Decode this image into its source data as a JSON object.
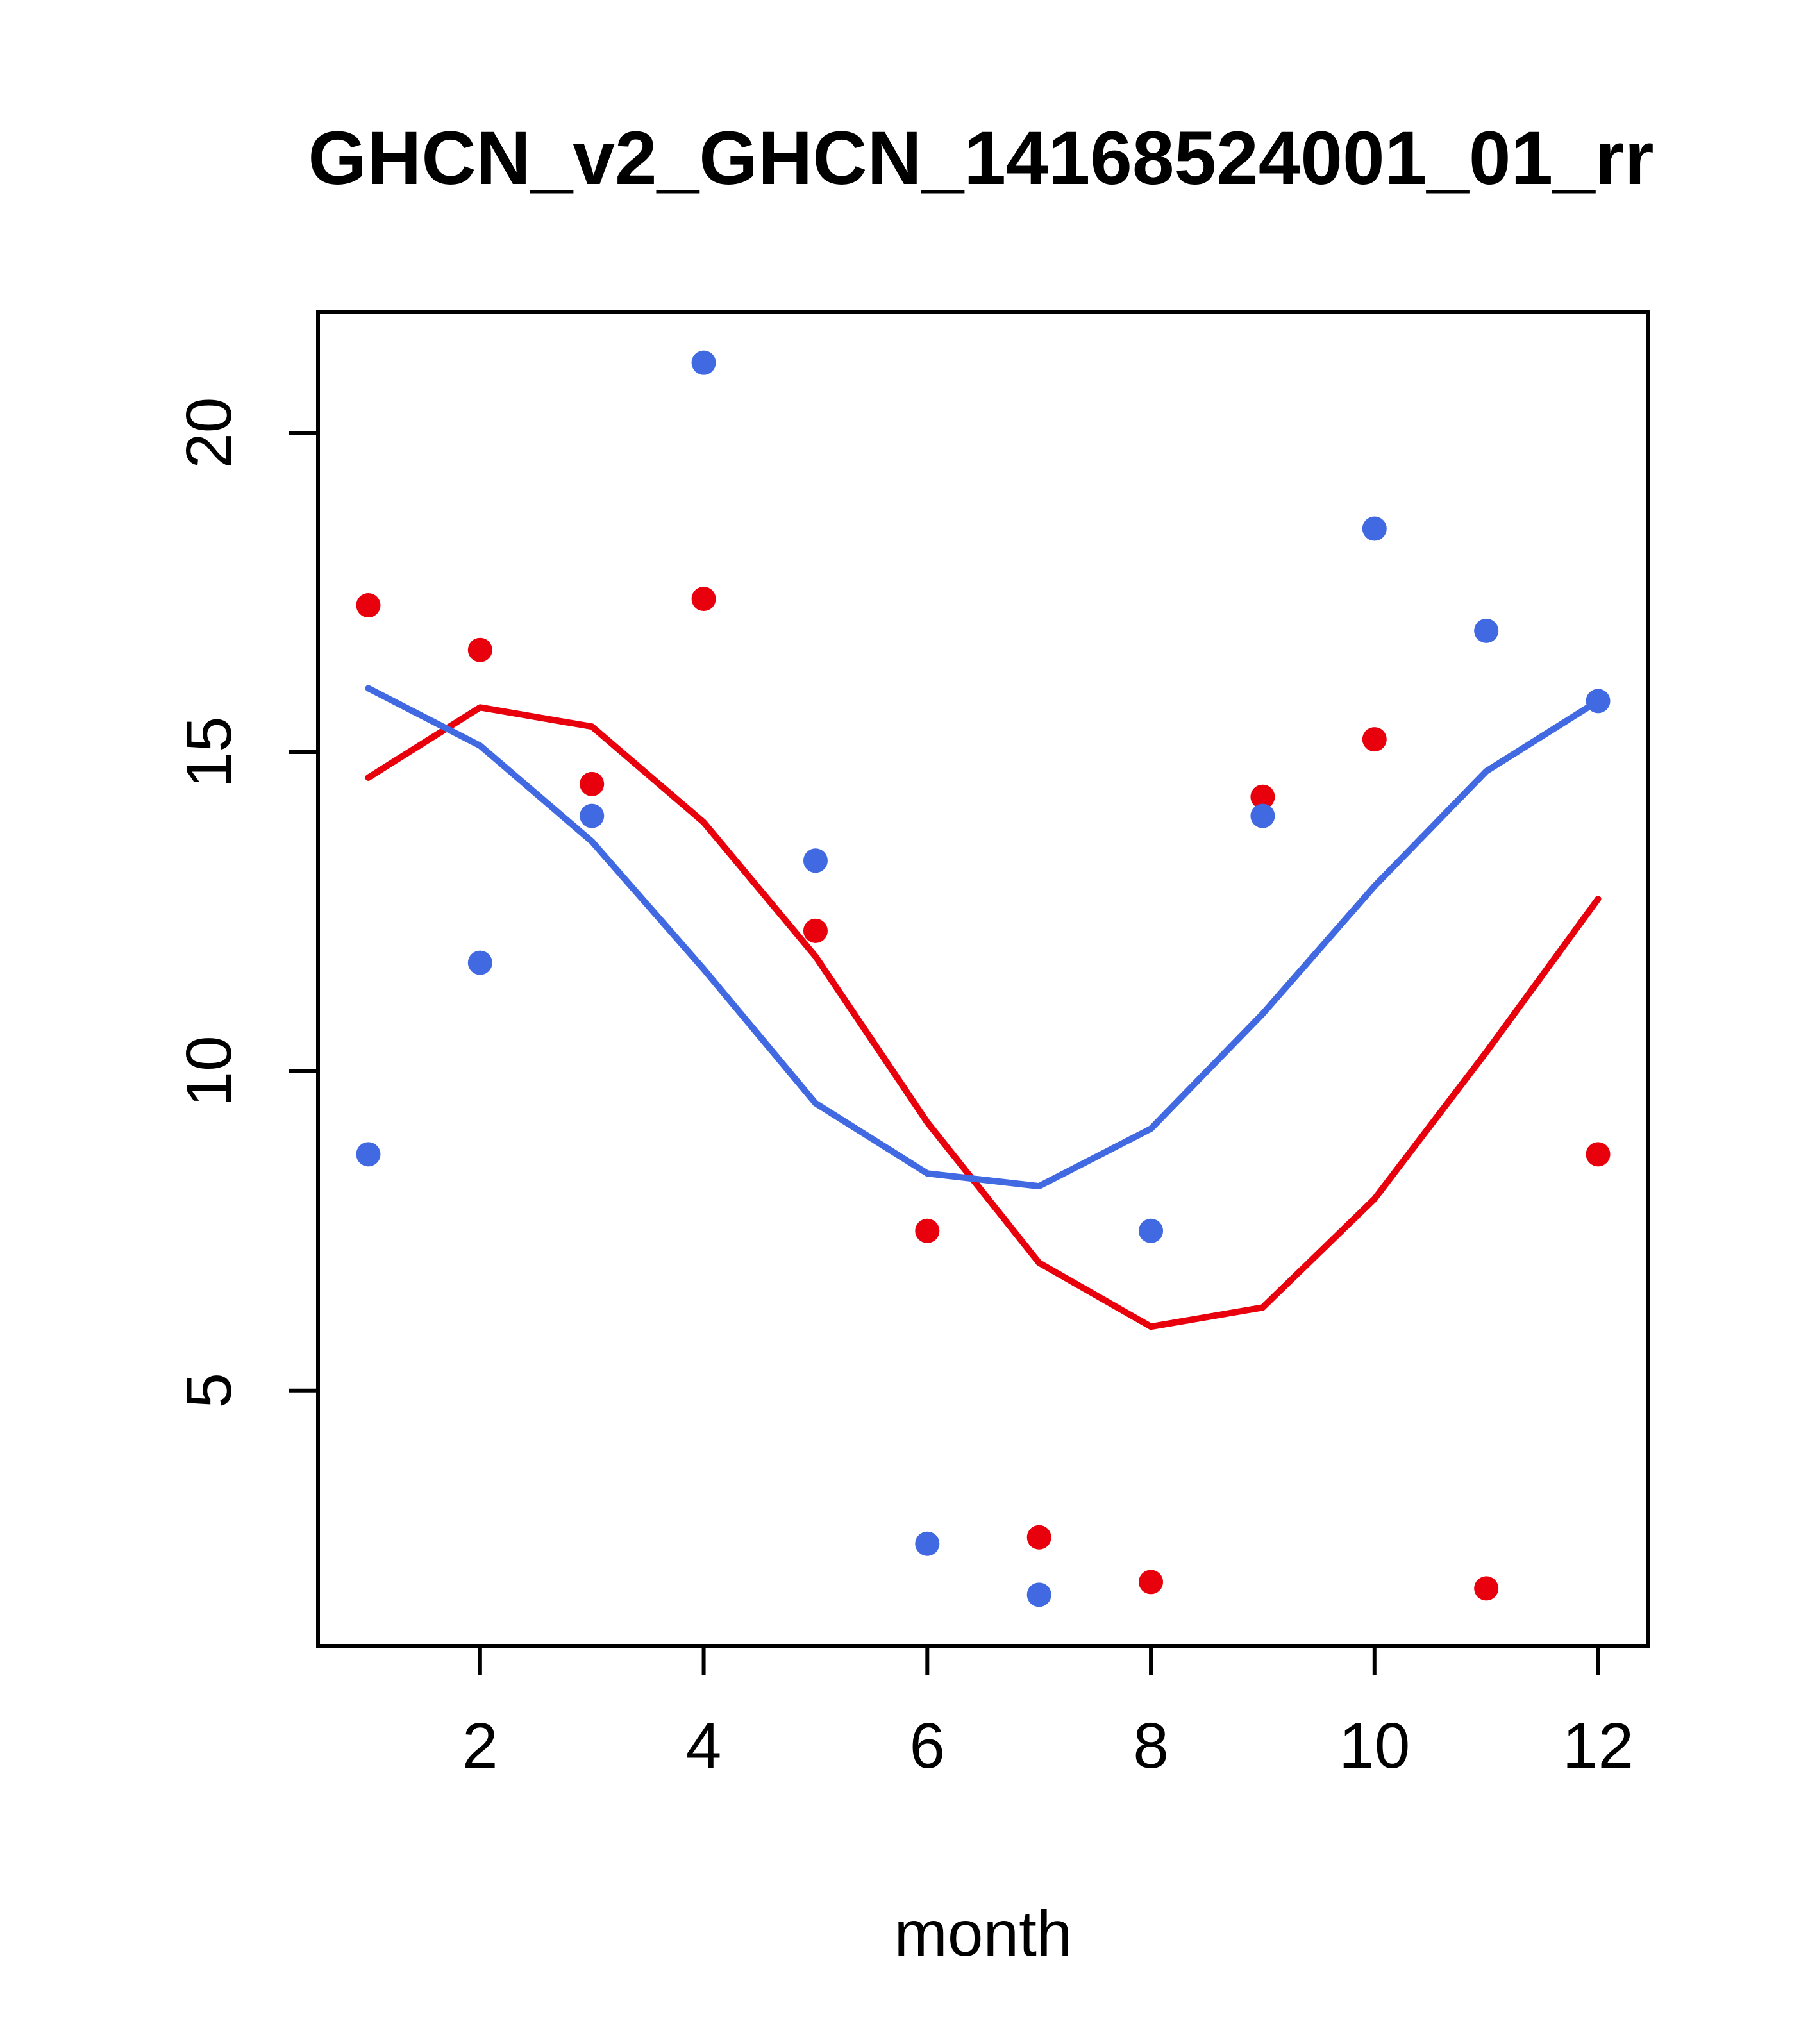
{
  "chart_data": {
    "type": "scatter",
    "title": "GHCN_v2_GHCN_14168524001_01_rr",
    "xlabel": "month",
    "ylabel": "",
    "xlim": [
      0.55,
      12.45
    ],
    "ylim": [
      1.0,
      21.9
    ],
    "xticks": [
      2,
      4,
      6,
      8,
      10,
      12
    ],
    "yticks": [
      5,
      10,
      15,
      20
    ],
    "grid": false,
    "legend": "none",
    "x": [
      1,
      2,
      3,
      4,
      5,
      6,
      7,
      8,
      9,
      10,
      11,
      12
    ],
    "series": [
      {
        "name": "red-points",
        "kind": "points",
        "color": "#e8000d",
        "values": [
          17.3,
          16.6,
          14.5,
          17.4,
          12.2,
          7.5,
          2.7,
          2.0,
          14.3,
          15.2,
          1.9,
          8.7
        ]
      },
      {
        "name": "blue-points",
        "kind": "points",
        "color": "#4169e1",
        "values": [
          8.7,
          11.7,
          14.0,
          21.1,
          13.3,
          2.6,
          1.8,
          7.5,
          14.0,
          18.5,
          16.9,
          15.8
        ]
      },
      {
        "name": "red-smooth-line",
        "kind": "line",
        "color": "#e8000d",
        "values": [
          14.6,
          15.7,
          15.4,
          13.9,
          11.8,
          9.2,
          7.0,
          6.0,
          6.3,
          8.0,
          10.3,
          12.7
        ]
      },
      {
        "name": "blue-smooth-line",
        "kind": "line",
        "color": "#4169e1",
        "values": [
          16.0,
          15.1,
          13.6,
          11.6,
          9.5,
          8.4,
          8.2,
          9.1,
          10.9,
          12.9,
          14.7,
          15.8
        ]
      }
    ],
    "style": {
      "axis_color": "#000000",
      "background": "#ffffff",
      "point_radius": 19,
      "line_width": 10
    }
  }
}
